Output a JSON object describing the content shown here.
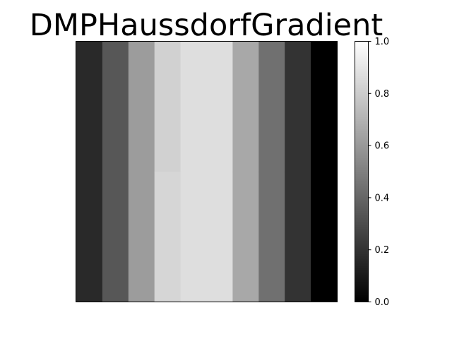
{
  "chart_data": {
    "type": "heatmap",
    "title": "DMPHaussdorfGradient",
    "xlabel": "",
    "ylabel": "",
    "colormap": "gray",
    "grid": false,
    "columns": [
      0.16,
      0.34,
      0.61,
      0.84,
      0.87,
      0.87,
      0.66,
      0.44,
      0.2,
      0.0
    ],
    "column_values_upper_rows": [
      0.16,
      0.34,
      0.61,
      0.82,
      0.87,
      0.87,
      0.66,
      0.44,
      0.2,
      0.0
    ],
    "colorbar": {
      "min": 0.0,
      "max": 1.0,
      "ticks": [
        0.0,
        0.2,
        0.4,
        0.6,
        0.8,
        1.0
      ],
      "tick_labels": [
        "0.0",
        "0.2",
        "0.4",
        "0.6",
        "0.8",
        "1.0"
      ]
    }
  }
}
